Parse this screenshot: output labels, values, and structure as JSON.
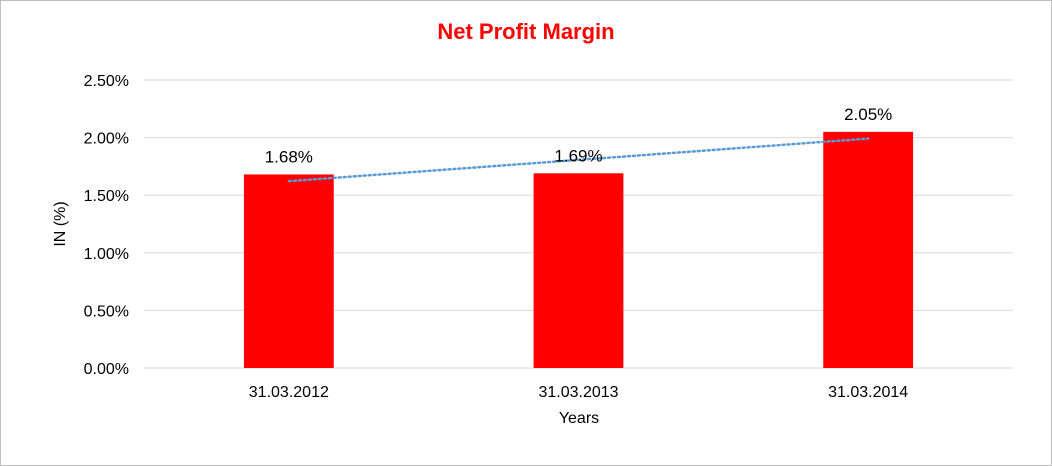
{
  "chart_data": {
    "type": "bar",
    "title": "Net Profit Margin",
    "title_color": "#ff0000",
    "xlabel": "Years",
    "ylabel": "IN (%)",
    "categories": [
      "31.03.2012",
      "31.03.2013",
      "31.03.2014"
    ],
    "values": [
      1.68,
      1.69,
      2.05
    ],
    "data_labels": [
      "1.68%",
      "1.69%",
      "2.05%"
    ],
    "ylim": [
      0,
      2.5
    ],
    "yticks": [
      0,
      0.5,
      1.0,
      1.5,
      2.0,
      2.5
    ],
    "ytick_labels": [
      "0.00%",
      "0.50%",
      "1.00%",
      "1.50%",
      "2.00%",
      "2.50%"
    ],
    "bar_color": "#ff0000",
    "grid": true,
    "grid_color": "#d9d9d9",
    "trendline": {
      "type": "linear",
      "style": "dotted",
      "color": "#5b9bd5"
    },
    "legend": "none"
  }
}
